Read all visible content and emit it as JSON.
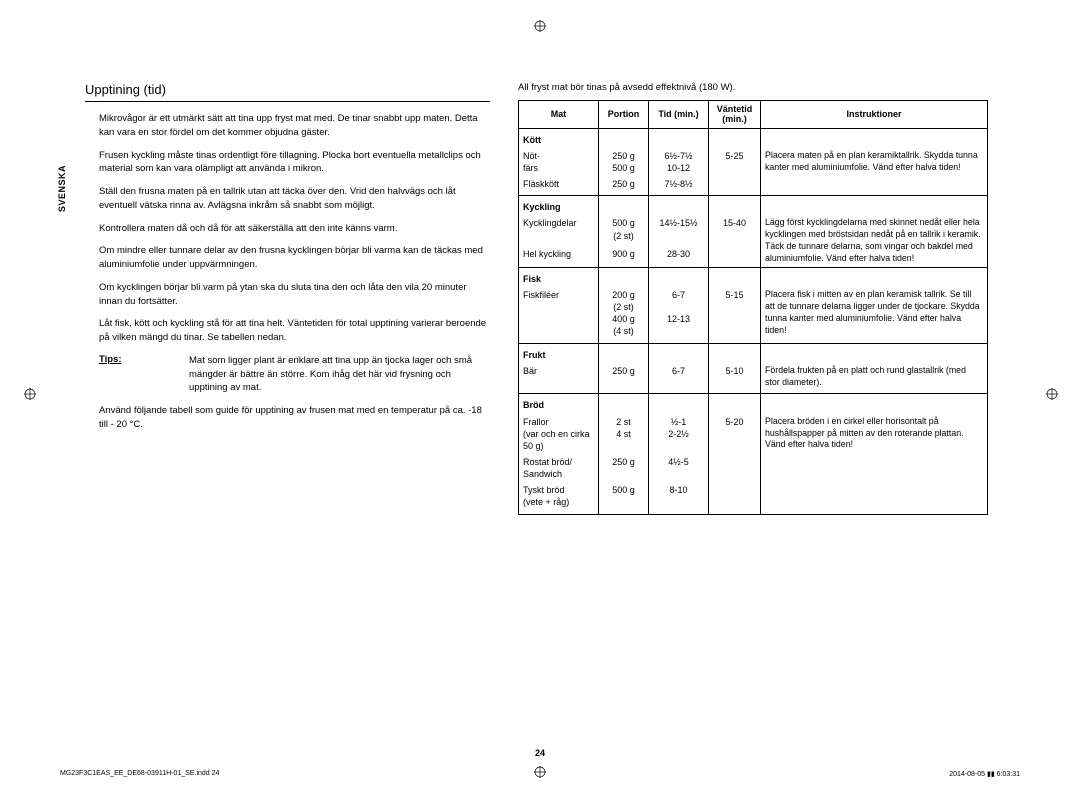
{
  "side_label": "SVENSKA",
  "title": "Upptining (tid)",
  "paragraphs": [
    "Mikrovågor är ett utmärkt sätt att tina upp fryst mat med. De tinar snabbt upp maten. Detta kan vara en stor fördel om det kommer objudna gäster.",
    "Frusen kyckling måste tinas ordentligt före tillagning. Plocka bort eventuella metallclips och material som kan vara olämpligt att använda i mikron.",
    "Ställ den frusna maten på en tallrik utan att täcka över den. Vrid den halvvägs och låt eventuell vätska rinna av. Avlägsna inkråm så snabbt som möjligt.",
    "Kontrollera maten då och då för att säkerställa att den inte känns varm.",
    "Om mindre eller tunnare delar av den frusna kycklingen börjar bli varma kan de täckas med aluminiumfolie under uppvärmningen.",
    "Om kycklingen börjar bli varm på ytan ska du sluta tina den och låta den vila 20 minuter innan du fortsätter.",
    "Låt fisk, kött och kyckling stå för att tina helt. Väntetiden för total upptining varierar beroende på vilken mängd du tinar. Se tabellen nedan."
  ],
  "tips_label": "Tips:",
  "tips_text": "Mat som ligger plant är enklare att tina upp än tjocka lager och små mängder är bättre än större. Kom ihåg det här vid frysning och upptining av mat.",
  "closing": "Använd följande tabell som guide för upptining av frusen mat med en temperatur på ca. -18 till - 20 °C.",
  "right_intro": "All fryst mat bör tinas på avsedd effektnivå (180 W).",
  "headers": {
    "mat": "Mat",
    "portion": "Portion",
    "tid": "Tid (min.)",
    "wait": "Väntetid (min.)",
    "instr": "Instruktioner"
  },
  "sections": [
    {
      "cat": "Kött",
      "rows": [
        {
          "mat": "Nöt-\nfärs",
          "por": "250 g\n500 g",
          "tid": "6½-7½\n10-12",
          "wait": "5-25",
          "inst": "Placera maten på en plan keramiktallrik. Skydda tunna kanter med aluminiumfolie. Vänd efter halva tiden!"
        },
        {
          "mat": "Fläskkött",
          "por": "250 g",
          "tid": "7½-8½",
          "wait": "",
          "inst": ""
        }
      ]
    },
    {
      "cat": "Kyckling",
      "rows": [
        {
          "mat": "Kycklingdelar",
          "por": "500 g\n(2 st)",
          "tid": "14½-15½",
          "wait": "15-40",
          "inst": "Lägg först kycklingdelarna med skinnet nedåt eller hela kycklingen med bröstsidan nedåt på en tallrik i keramik. Täck de tunnare delarna, som vingar och bakdel med aluminiumfolie. Vänd efter halva tiden!"
        },
        {
          "mat": "Hel kyckling",
          "por": "900 g",
          "tid": "28-30",
          "wait": "",
          "inst": ""
        }
      ]
    },
    {
      "cat": "Fisk",
      "rows": [
        {
          "mat": "Fiskfiléer",
          "por": "200 g\n(2 st)\n400 g\n(4 st)",
          "tid": "6-7\n\n12-13",
          "wait": "5-15",
          "inst": "Placera fisk i mitten av en plan keramisk tallrik. Se till att de tunnare delarna ligger under de tjockare. Skydda tunna kanter med aluminiumfolie. Vänd efter halva tiden!"
        }
      ]
    },
    {
      "cat": "Frukt",
      "rows": [
        {
          "mat": "Bär",
          "por": "250 g",
          "tid": "6-7",
          "wait": "5-10",
          "inst": "Fördela frukten på en platt och rund glastallrik (med stor diameter)."
        }
      ]
    },
    {
      "cat": "Bröd",
      "rows": [
        {
          "mat": "Frallor\n(var och en cirka 50 g)",
          "por": "2 st\n4 st",
          "tid": "½-1\n2-2½",
          "wait": "5-20",
          "inst": "Placera bröden i en cirkel eller horisontalt på hushållspapper på mitten av den roterande plattan. Vänd efter halva tiden!"
        },
        {
          "mat": "Rostat bröd/\nSandwich",
          "por": "250 g",
          "tid": "4½-5",
          "wait": "",
          "inst": ""
        },
        {
          "mat": "Tyskt bröd\n(vete + råg)",
          "por": "500 g",
          "tid": "8-10",
          "wait": "",
          "inst": ""
        }
      ]
    }
  ],
  "page_num": "24",
  "footer_left": "MG23F3C1EAS_EE_DE68-03911H-01_SE.indd   24",
  "footer_right": "2014-08-05   ▮▮ 6:03:31"
}
